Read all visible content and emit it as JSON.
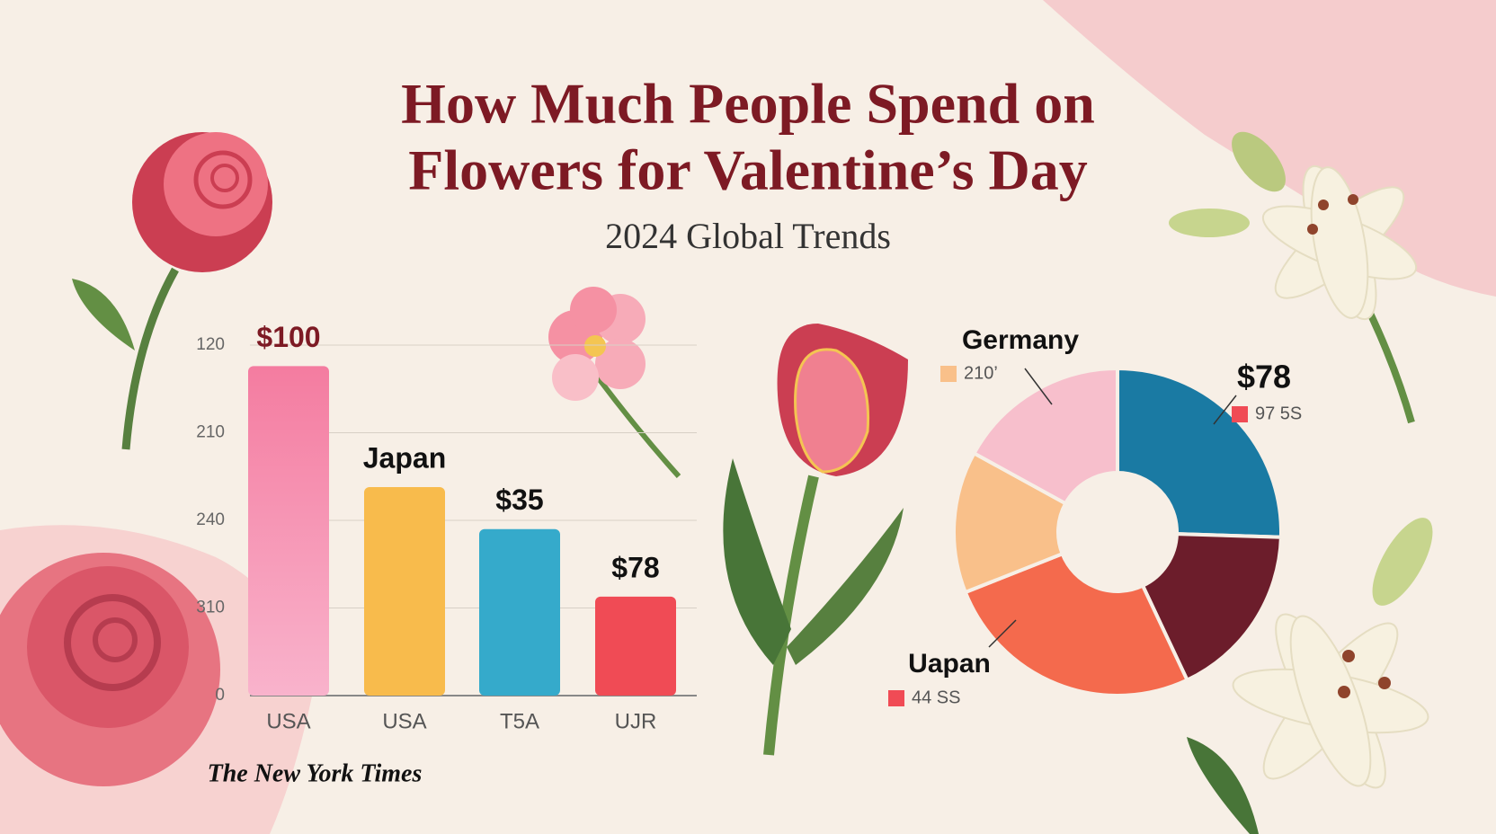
{
  "title": "How Much People Spend on",
  "title_line2": "Flowers for Valentine’s Day",
  "subtitle": "2024 Global Trends",
  "source": "The New York Times",
  "chart_data": [
    {
      "type": "bar",
      "categories": [
        "USA",
        "USA",
        "T5A",
        "UJR"
      ],
      "values": [
        3.76,
        2.38,
        1.9,
        1.13
      ],
      "colors": [
        "#f47ca0",
        "#f8bb4c",
        "#35aacb",
        "#f04b55"
      ],
      "annotations": [
        "$100",
        "Japan",
        "$35",
        "$78"
      ],
      "ylim": [
        0,
        4
      ],
      "yticks": [
        0,
        {
          "value": 1,
          "label": "310"
        },
        {
          "value": 2,
          "label": "240"
        },
        {
          "value": 3,
          "label": "210"
        },
        {
          "value": 4,
          "label": "120"
        }
      ],
      "grid": true
    },
    {
      "type": "donut",
      "values": [
        25.5,
        17.5,
        26,
        14,
        17
      ],
      "colors": [
        "#1a7aa3",
        "#6c1d2b",
        "#f46a4d",
        "#f9c08a",
        "#f7bfcc"
      ],
      "annotations": [
        {
          "title": "Germany",
          "note": "210’",
          "color": "#f9c08a"
        },
        {
          "title": "$78",
          "note": "97 5S",
          "color": "#f04b55"
        },
        {
          "title": "Uapan",
          "note": "44 SS",
          "color": "#f04b55"
        }
      ]
    }
  ]
}
